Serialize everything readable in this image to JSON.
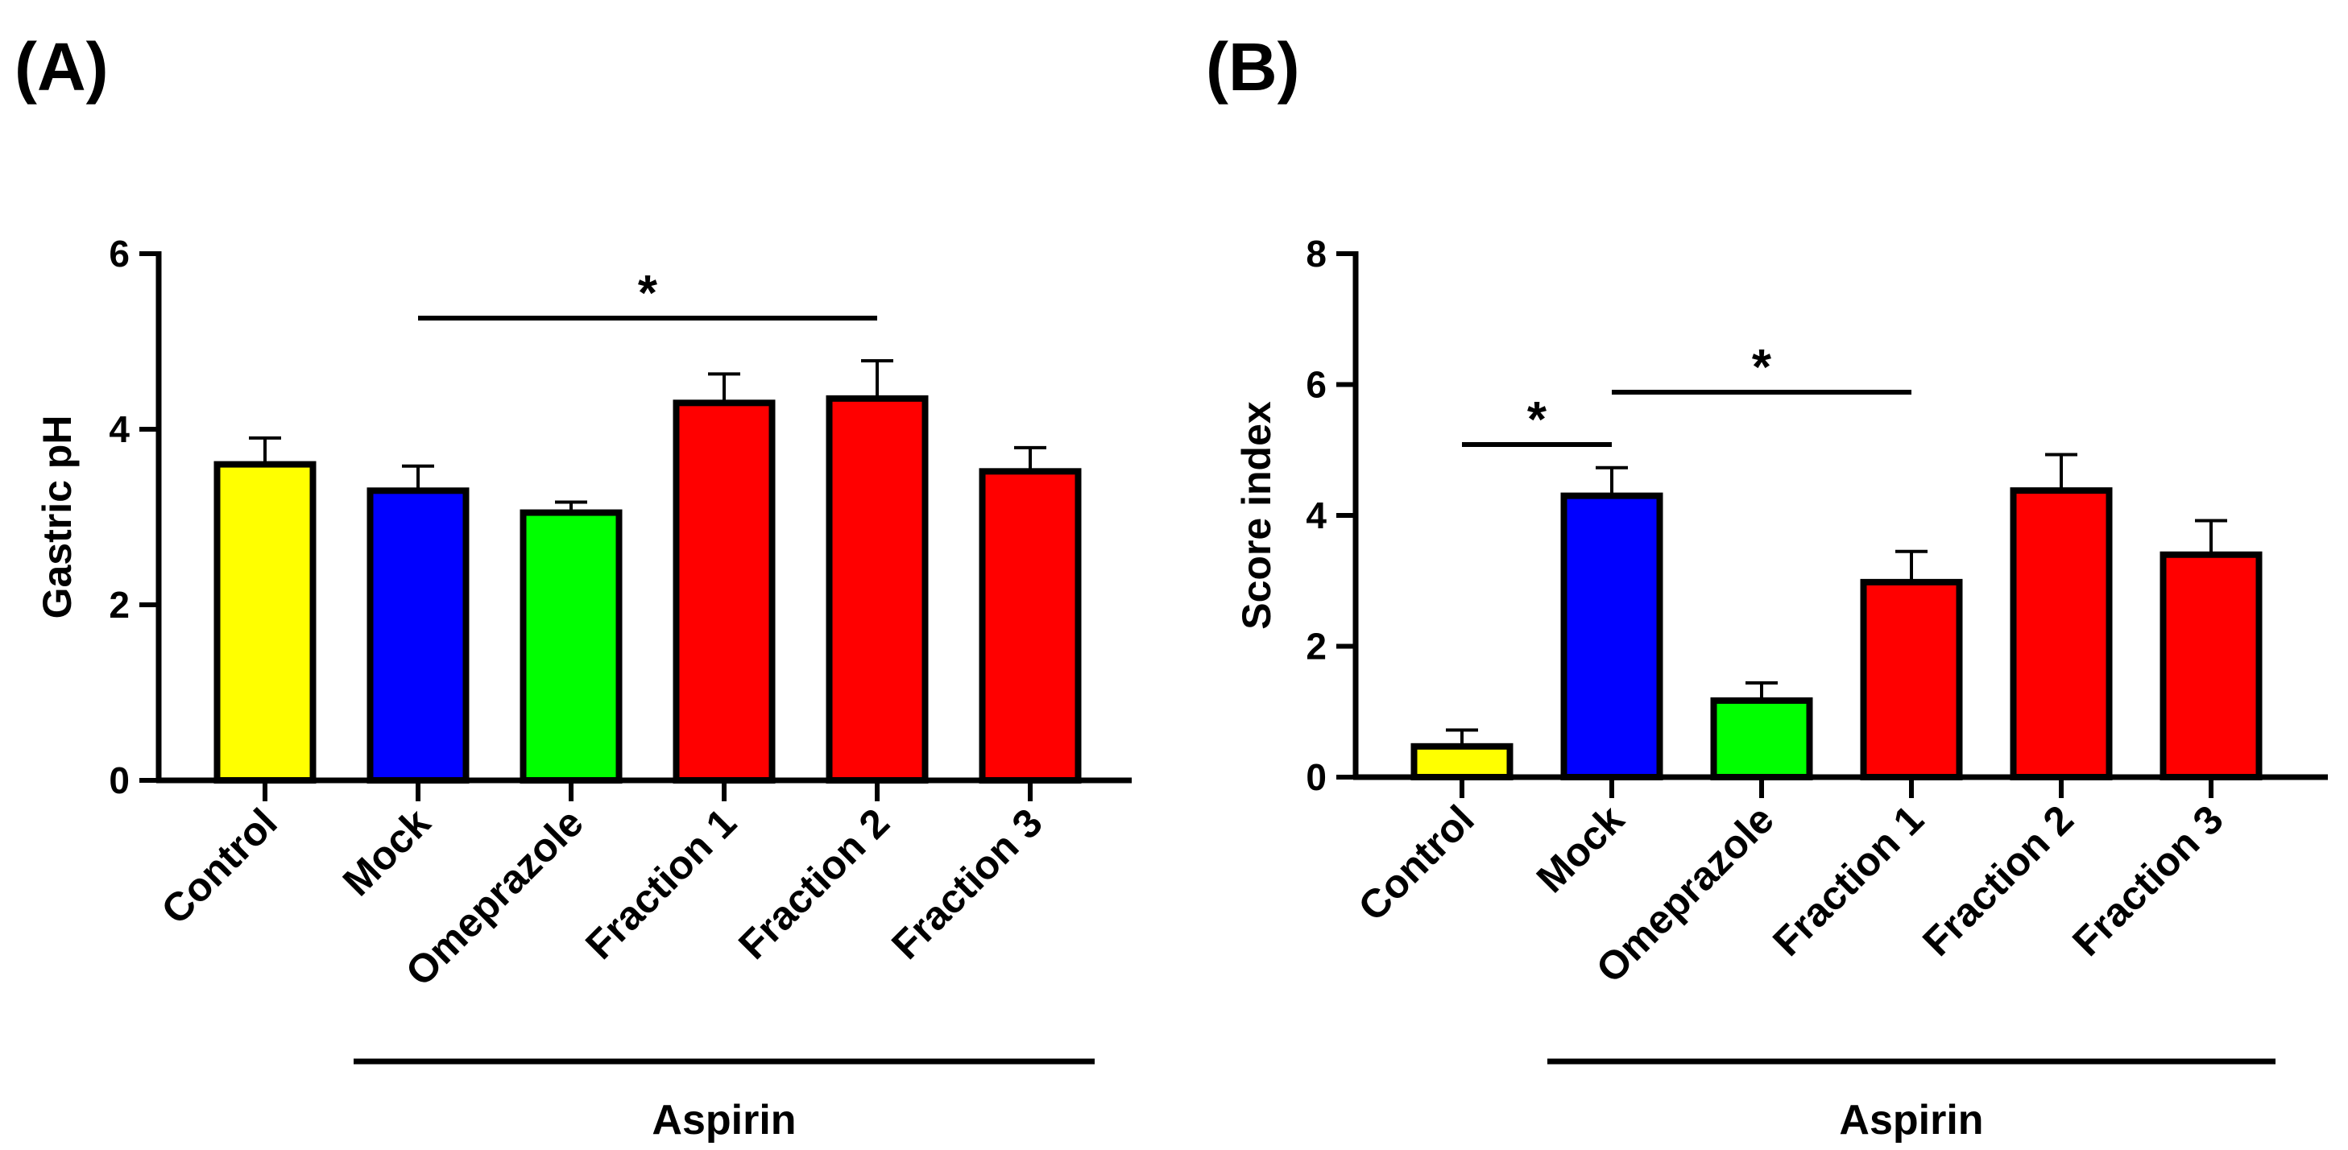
{
  "figure": {
    "panels": [
      {
        "label": "(A)"
      },
      {
        "label": "(B)"
      }
    ]
  },
  "chart_data": [
    {
      "type": "bar",
      "panel": "(A)",
      "title": "",
      "xlabel": "",
      "ylabel": "Gastric pH",
      "ylim": [
        0,
        6
      ],
      "yticks": [
        0,
        2,
        4,
        6
      ],
      "categories": [
        "Control",
        "Mock",
        "Omeprazole",
        "Fraction 1",
        "Fraction 2",
        "Fraction 3"
      ],
      "values": [
        3.6,
        3.3,
        3.05,
        4.3,
        4.35,
        3.52
      ],
      "errors": [
        0.3,
        0.28,
        0.12,
        0.33,
        0.43,
        0.27
      ],
      "colors": [
        "#ffff00",
        "#0000ff",
        "#00ff00",
        "#ff0000",
        "#ff0000",
        "#ff0000"
      ],
      "group_label": "Aspirin",
      "group_span": [
        "Mock",
        "Fraction 3"
      ],
      "significance": [
        {
          "from": "Mock",
          "to": "Fraction 2",
          "label": "*"
        }
      ]
    },
    {
      "type": "bar",
      "panel": "(B)",
      "title": "",
      "xlabel": "",
      "ylabel": "Score index",
      "ylim": [
        0,
        8
      ],
      "yticks": [
        0,
        2,
        4,
        6,
        8
      ],
      "categories": [
        "Control",
        "Mock",
        "Omeprazole",
        "Fraction 1",
        "Fraction 2",
        "Fraction 3"
      ],
      "values": [
        0.47,
        4.3,
        1.17,
        2.98,
        4.38,
        3.4
      ],
      "errors": [
        0.25,
        0.43,
        0.27,
        0.47,
        0.55,
        0.52
      ],
      "colors": [
        "#ffff00",
        "#0000ff",
        "#00ff00",
        "#ff0000",
        "#ff0000",
        "#ff0000"
      ],
      "group_label": "Aspirin",
      "group_span": [
        "Mock",
        "Fraction 3"
      ],
      "significance": [
        {
          "from": "Control",
          "to": "Mock",
          "label": "*"
        },
        {
          "from": "Mock",
          "to": "Fraction 1",
          "label": "*"
        }
      ]
    }
  ]
}
